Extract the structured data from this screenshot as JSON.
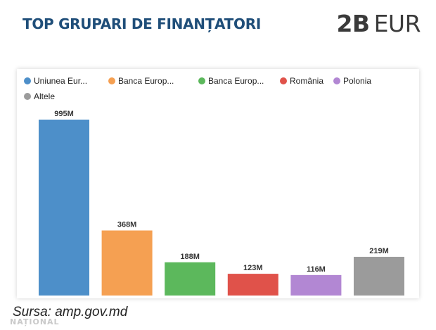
{
  "header": {
    "title": "TOP GRUPARI DE FINANȚATORI",
    "total_amount": "2B",
    "total_currency": "EUR"
  },
  "chart_data": {
    "type": "bar",
    "categories": [
      "Uniunea Eur...",
      "Banca Europ...",
      "Banca Europ...",
      "România",
      "Polonia",
      "Altele"
    ],
    "values": [
      995,
      368,
      188,
      123,
      116,
      219
    ],
    "value_labels": [
      "995M",
      "368M",
      "188M",
      "123M",
      "116M",
      "219M"
    ],
    "colors": [
      "#4d8fc9",
      "#f5a052",
      "#5cb85c",
      "#e0524a",
      "#b287d3",
      "#9b9b9b"
    ],
    "legend_position": "top",
    "grid": false,
    "ylim": [
      0,
      995
    ]
  },
  "footer": {
    "source": "Sursa: amp.gov.md",
    "watermark": "NAȚIONAL"
  }
}
